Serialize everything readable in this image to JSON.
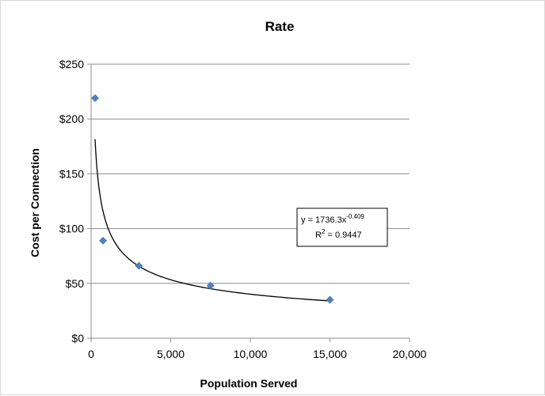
{
  "chart_data": {
    "type": "scatter",
    "title": "Rate",
    "xlabel": "Population Served",
    "ylabel": "Cost per Connection",
    "xlim": [
      0,
      20000
    ],
    "ylim": [
      0,
      250
    ],
    "x_ticks": [
      0,
      5000,
      10000,
      15000,
      20000
    ],
    "x_tick_labels": [
      "0",
      "5,000",
      "10,000",
      "15,000",
      "20,000"
    ],
    "y_ticks": [
      0,
      50,
      100,
      150,
      200,
      250
    ],
    "y_tick_labels": [
      "$0",
      "$50",
      "$100",
      "$150",
      "$200",
      "$250"
    ],
    "grid": "horizontal",
    "legend": "none",
    "marker_color": "#4f81bd",
    "series": [
      {
        "points": [
          {
            "x": 250,
            "y": 219
          },
          {
            "x": 750,
            "y": 89
          },
          {
            "x": 3000,
            "y": 66
          },
          {
            "x": 7500,
            "y": 48
          },
          {
            "x": 15000,
            "y": 35
          }
        ]
      }
    ],
    "trendline": {
      "type": "power",
      "coefficient": 1736.3,
      "exponent": -0.409,
      "x_start": 250,
      "x_end": 15000,
      "color": "#000000",
      "equation_prefix": "y = 1736.3x",
      "equation_exponent": "-0.409",
      "r2_prefix": "R",
      "r2_superscript": "2",
      "r2_suffix": " = 0.9447"
    }
  }
}
